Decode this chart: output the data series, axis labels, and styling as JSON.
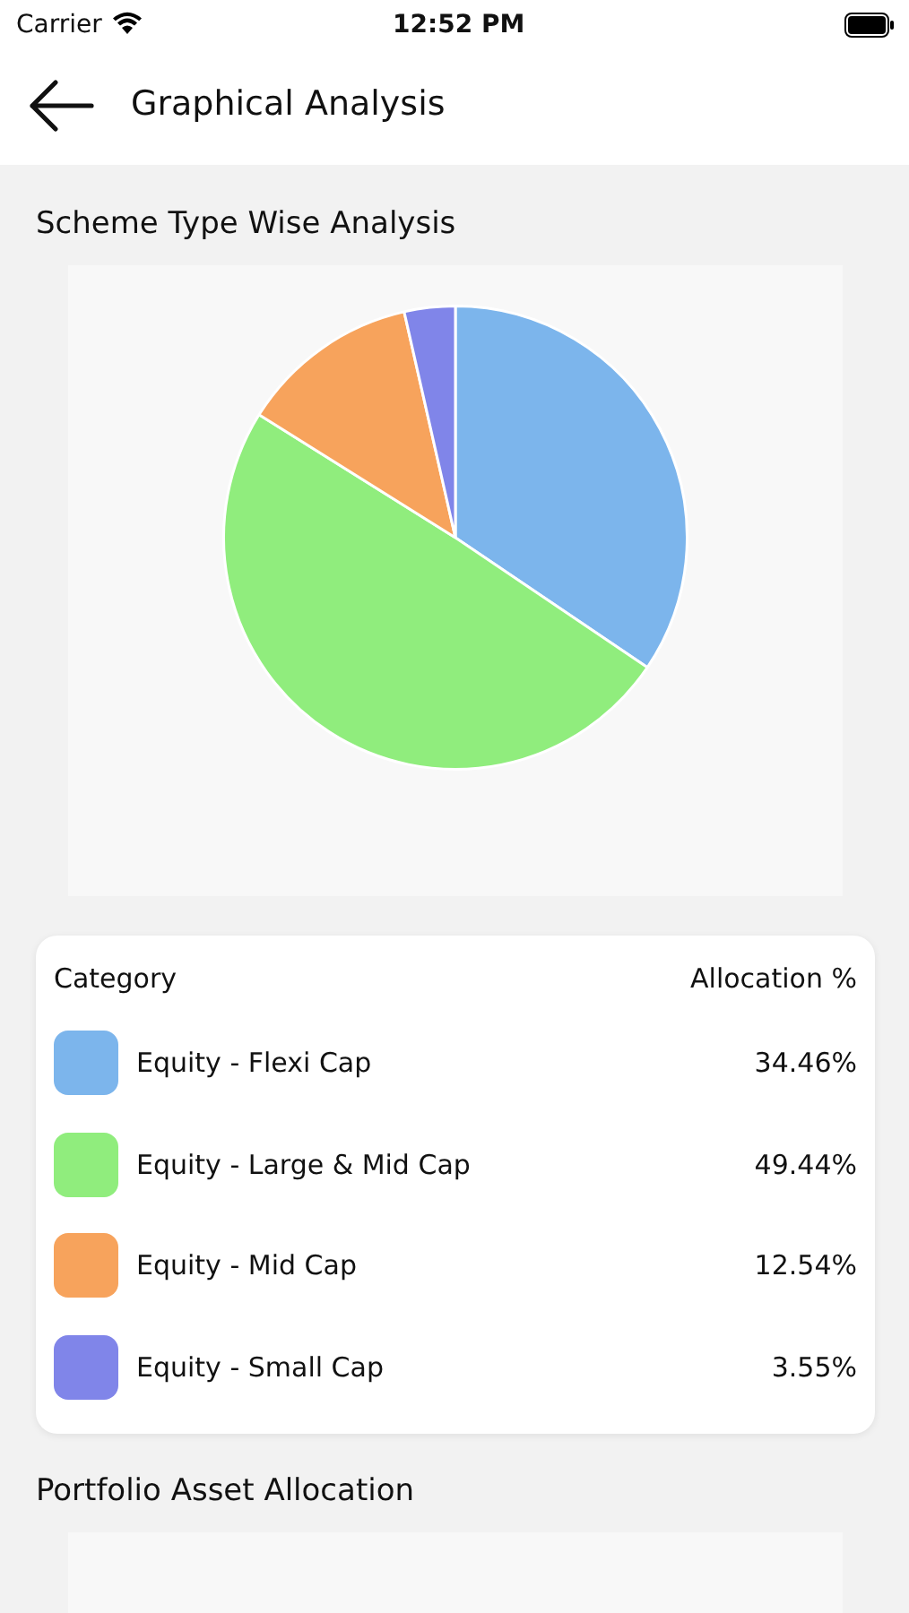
{
  "chart_data": [
    {
      "type": "pie",
      "title": "Scheme Type Wise Analysis",
      "legend_title": "Category",
      "ylabel": "Allocation %",
      "categories": [
        "Equity - Flexi Cap",
        "Equity - Large & Mid Cap",
        "Equity - Mid Cap",
        "Equity - Small Cap"
      ],
      "values": [
        34.46,
        49.44,
        12.54,
        3.55
      ],
      "colors": [
        "#7cb5ec",
        "#90ed7d",
        "#f7a35c",
        "#8085e9"
      ],
      "value_labels": [
        "34.46%",
        "49.44%",
        "12.54%",
        "3.55%"
      ],
      "legend": "bottom",
      "annotations": [
        "Carrier",
        "12:52 PM",
        "Graphical Analysis"
      ]
    },
    {
      "type": "other",
      "title": "Portfolio Asset Allocation"
    }
  ]
}
